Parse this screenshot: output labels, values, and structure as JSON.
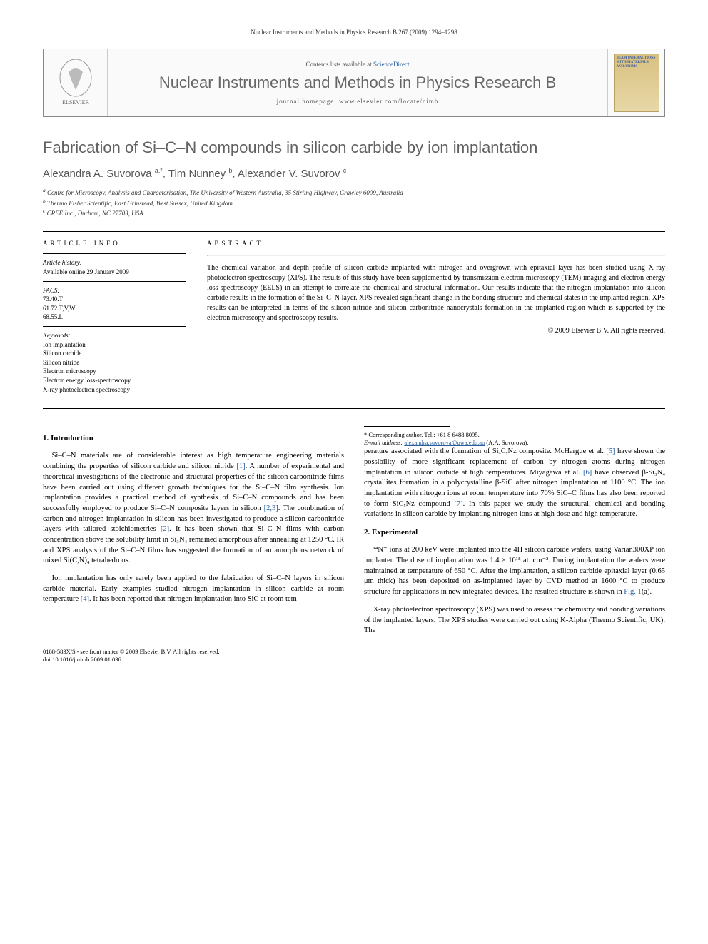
{
  "running_header": "Nuclear Instruments and Methods in Physics Research B 267 (2009) 1294–1298",
  "journal_box": {
    "contents_prefix": "Contents lists available at ",
    "contents_link": "ScienceDirect",
    "journal_name": "Nuclear Instruments and Methods in Physics Research B",
    "homepage_label": "journal homepage: www.elsevier.com/locate/nimb",
    "cover_text": "BEAM INTERACTIONS WITH MATERIALS AND ATOMS"
  },
  "title": "Fabrication of Si–C–N compounds in silicon carbide by ion implantation",
  "authors_html": "Alexandra A. Suvorova <sup>a,*</sup>, Tim Nunney <sup>b</sup>, Alexander V. Suvorov <sup>c</sup>",
  "affiliations": [
    "a Centre for Microscopy, Analysis and Characterisation, The University of Western Australia, 35 Stirling Highway, Crawley 6009, Australia",
    "b Thermo Fisher Scientific, East Grinstead, West Sussex, United Kingdom",
    "c CREE Inc., Durham, NC 27703, USA"
  ],
  "article_info": {
    "heading": "ARTICLE INFO",
    "history_label": "Article history:",
    "history_text": "Available online 29 January 2009",
    "pacs_label": "PACS:",
    "pacs": [
      "73.40.T",
      "61.72.T,V,W",
      "68.55.L"
    ],
    "keywords_label": "Keywords:",
    "keywords": [
      "Ion implantation",
      "Silicon carbide",
      "Silicon nitride",
      "Electron microscopy",
      "Electron energy loss-spectroscopy",
      "X-ray photoelectron spectroscopy"
    ]
  },
  "abstract": {
    "heading": "ABSTRACT",
    "text": "The chemical variation and depth profile of silicon carbide implanted with nitrogen and overgrown with epitaxial layer has been studied using X-ray photoelectron spectroscopy (XPS). The results of this study have been supplemented by transmission electron microscopy (TEM) imaging and electron energy loss-spectroscopy (EELS) in an attempt to correlate the chemical and structural information. Our results indicate that the nitrogen implantation into silicon carbide results in the formation of the Si–C–N layer. XPS revealed significant change in the bonding structure and chemical states in the implanted region. XPS results can be interpreted in terms of the silicon nitride and silicon carbonitride nanocrystals formation in the implanted region which is supported by the electron microscopy and spectroscopy results.",
    "copyright": "© 2009 Elsevier B.V. All rights reserved."
  },
  "sections": {
    "intro_heading": "1. Introduction",
    "intro_p1": "Si–C–N materials are of considerable interest as high temperature engineering materials combining the properties of silicon carbide and silicon nitride [1]. A number of experimental and theoretical investigations of the electronic and structural properties of the silicon carbonitride films have been carried out using different growth techniques for the Si–C–N film synthesis. Ion implantation provides a practical method of synthesis of Si–C–N compounds and has been successfully employed to produce Si–C–N composite layers in silicon [2,3]. The combination of carbon and nitrogen implantation in silicon has been investigated to produce a silicon carbonitride layers with tailored stoichiometries [2]. It has been shown that Si–C–N films with carbon concentration above the solubility limit in Si₃N₄ remained amorphous after annealing at 1250 °C. IR and XPS analysis of the Si–C–N films has suggested the formation of an amorphous network of mixed Si(C,N)₄ tetrahedrons.",
    "intro_p2": "Ion implantation has only rarely been applied to the fabrication of Si–C–N layers in silicon carbide material. Early examples studied nitrogen implantation in silicon carbide at room temperature [4]. It has been reported that nitrogen implantation into SiC at room tem-",
    "intro_p3": "perature associated with the formation of SiₓCᵧNz composite. McHargue et al. [5] have shown the possibility of more significant replacement of carbon by nitrogen atoms during nitrogen implantation in silicon carbide at high temperatures. Miyagawa et al. [6] have observed β-Si₃N₄ crystallites formation in a polycrystalline β-SiC after nitrogen implantation at 1100 °C. The ion implantation with nitrogen ions at room temperature into 70% SiC–C films has also been reported to form SiCₓNz compound [7]. In this paper we study the structural, chemical and bonding variations in silicon carbide by implanting nitrogen ions at high dose and high temperature.",
    "exp_heading": "2. Experimental",
    "exp_p1": "¹⁴N⁺ ions at 200 keV were implanted into the 4H silicon carbide wafers, using Varian300XP ion implanter. The dose of implantation was 1.4 × 10¹⁸ at. cm⁻². During implantation the wafers were maintained at temperature of 650 °C. After the implantation, a silicon carbide epitaxial layer (0.65 μm thick) has been deposited on as-implanted layer by CVD method at 1600 °C to produce structure for applications in new integrated devices. The resulted structure is shown in Fig. 1(a).",
    "exp_p2": "X-ray photoelectron spectroscopy (XPS) was used to assess the chemistry and bonding variations of the implanted layers. The XPS studies were carried out using K-Alpha (Thermo Scientific, UK). The"
  },
  "footnote": {
    "corr": "* Corresponding author. Tel.: +61 8 6488 8095.",
    "email_label": "E-mail address:",
    "email": "alexandra.suvorova@uwa.edu.au",
    "email_suffix": " (A.A. Suvorova)."
  },
  "footer": {
    "front_matter": "0168-583X/$ - see front matter © 2009 Elsevier B.V. All rights reserved.",
    "doi": "doi:10.1016/j.nimb.2009.01.036"
  },
  "colors": {
    "link": "#2860a0",
    "heading_gray": "#606060",
    "text": "#000000"
  }
}
